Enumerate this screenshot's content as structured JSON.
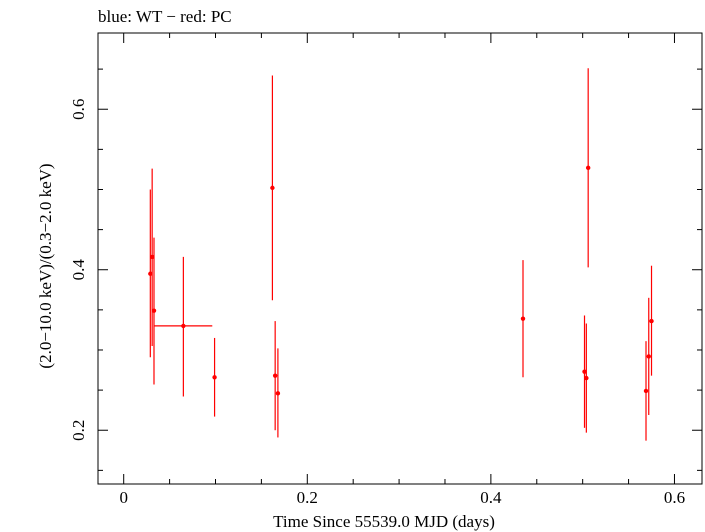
{
  "chart_data": {
    "type": "scatter",
    "title": "blue: WT − red: PC",
    "xlabel": "Time Since 55539.0 MJD (days)",
    "ylabel": "(2.0−10.0 keV)/(0.3−2.0 keV)",
    "xlim": [
      -0.028,
      0.63
    ],
    "ylim": [
      0.133,
      0.695
    ],
    "x_ticks": [
      0,
      0.2,
      0.4,
      0.6
    ],
    "x_tick_labels": [
      "0",
      "0.2",
      "0.4",
      "0.6"
    ],
    "y_ticks": [
      0.2,
      0.4,
      0.6
    ],
    "y_tick_labels": [
      "0.2",
      "0.4",
      "0.6"
    ],
    "grid": false,
    "series": [
      {
        "color": "#ff0000",
        "points": [
          {
            "x": 0.029,
            "y": 0.395,
            "xerr": 0.001,
            "ylo": 0.291,
            "yhi": 0.5
          },
          {
            "x": 0.031,
            "y": 0.416,
            "xerr": 0.001,
            "ylo": 0.305,
            "yhi": 0.526
          },
          {
            "x": 0.033,
            "y": 0.349,
            "xerr": 0.001,
            "ylo": 0.257,
            "yhi": 0.44
          },
          {
            "x": 0.065,
            "y": 0.33,
            "xerr": 0.0315,
            "ylo": 0.242,
            "yhi": 0.416
          },
          {
            "x": 0.099,
            "y": 0.266,
            "xerr": 0.001,
            "ylo": 0.217,
            "yhi": 0.315
          },
          {
            "x": 0.162,
            "y": 0.502,
            "xerr": 0.001,
            "ylo": 0.362,
            "yhi": 0.642
          },
          {
            "x": 0.165,
            "y": 0.268,
            "xerr": 0.001,
            "ylo": 0.2,
            "yhi": 0.336
          },
          {
            "x": 0.168,
            "y": 0.246,
            "xerr": 0.001,
            "ylo": 0.191,
            "yhi": 0.302
          },
          {
            "x": 0.435,
            "y": 0.339,
            "xerr": 0.001,
            "ylo": 0.266,
            "yhi": 0.412
          },
          {
            "x": 0.502,
            "y": 0.273,
            "xerr": 0.001,
            "ylo": 0.203,
            "yhi": 0.343
          },
          {
            "x": 0.504,
            "y": 0.265,
            "xerr": 0.001,
            "ylo": 0.197,
            "yhi": 0.333
          },
          {
            "x": 0.506,
            "y": 0.527,
            "xerr": 0.001,
            "ylo": 0.403,
            "yhi": 0.651
          },
          {
            "x": 0.569,
            "y": 0.249,
            "xerr": 0.001,
            "ylo": 0.187,
            "yhi": 0.311
          },
          {
            "x": 0.572,
            "y": 0.292,
            "xerr": 0.001,
            "ylo": 0.219,
            "yhi": 0.365
          },
          {
            "x": 0.575,
            "y": 0.336,
            "xerr": 0.001,
            "ylo": 0.268,
            "yhi": 0.405
          }
        ]
      }
    ]
  }
}
